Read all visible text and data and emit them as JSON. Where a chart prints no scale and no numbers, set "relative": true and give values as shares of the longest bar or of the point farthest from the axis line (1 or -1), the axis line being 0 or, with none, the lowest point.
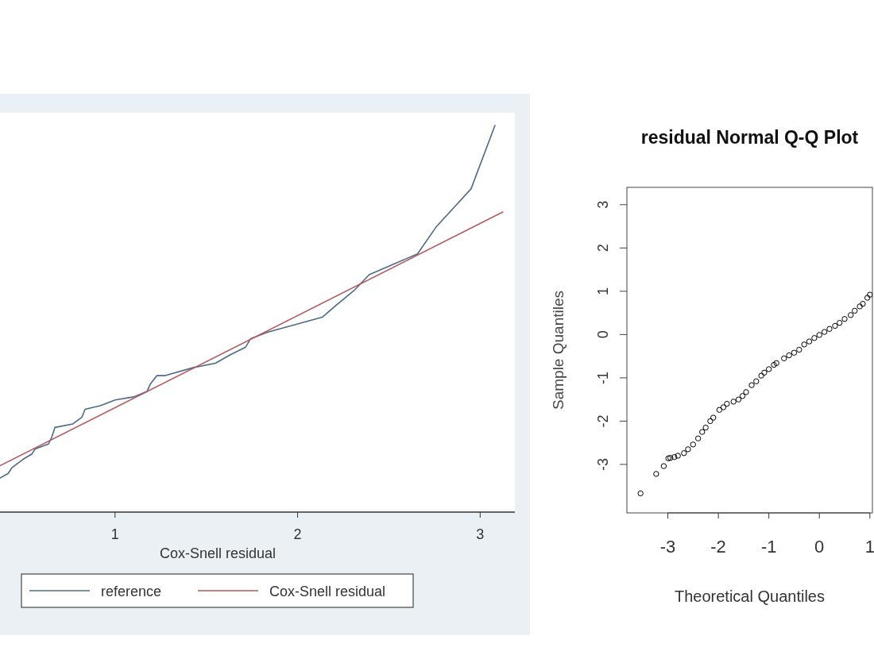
{
  "chart_data": [
    {
      "type": "line",
      "xlabel": "Cox-Snell residual",
      "relative": true,
      "xlim": [
        0.37,
        3.19
      ],
      "xticks": [
        1,
        2,
        3
      ],
      "legend": "bottom",
      "series": [
        {
          "name": "reference",
          "color": "#4b6a8c",
          "x": [
            0.37,
            0.415,
            0.434,
            0.461,
            0.498,
            0.544,
            0.562,
            0.635,
            0.653,
            0.671,
            0.769,
            0.818,
            0.836,
            0.919,
            1.001,
            1.102,
            1.175,
            1.193,
            1.23,
            1.275,
            1.431,
            1.55,
            1.632,
            1.714,
            1.742,
            1.834,
            2.135,
            2.209,
            2.309,
            2.392,
            2.657,
            2.758,
            2.95,
            3.081
          ],
          "values": [
            0.088,
            0.1,
            0.114,
            0.124,
            0.137,
            0.15,
            0.163,
            0.176,
            0.193,
            0.219,
            0.228,
            0.245,
            0.266,
            0.275,
            0.29,
            0.298,
            0.312,
            0.331,
            0.353,
            0.353,
            0.374,
            0.385,
            0.407,
            0.426,
            0.448,
            0.465,
            0.504,
            0.534,
            0.573,
            0.614,
            0.668,
            0.737,
            0.836,
            1
          ]
        },
        {
          "name": "Cox-Snell residual",
          "color": "#b35a5e",
          "x": [
            0.37,
            3.124
          ],
          "values": [
            0.12,
            0.776
          ]
        }
      ]
    },
    {
      "type": "scatter",
      "title": "residual Normal Q-Q Plot",
      "xlabel": "Theoretical Quantiles",
      "ylabel": "Sample Quantiles",
      "xlim": [
        -3.81,
        1.05
      ],
      "ylim": [
        -4.12,
        3.4
      ],
      "xticks": [
        -3,
        -2,
        -1,
        0,
        1
      ],
      "yticks": [
        -3,
        -2,
        -1,
        0,
        1,
        2,
        3
      ],
      "marker": "circle",
      "series": [
        {
          "color": "#000000",
          "x": [
            -3.54,
            -3.23,
            -3.08,
            -2.99,
            -2.95,
            -2.87,
            -2.8,
            -2.68,
            -2.6,
            -2.5,
            -2.4,
            -2.32,
            -2.25,
            -2.16,
            -2.1,
            -1.98,
            -1.9,
            -1.83,
            -1.7,
            -1.6,
            -1.52,
            -1.45,
            -1.34,
            -1.25,
            -1.15,
            -1.09,
            -1.0,
            -0.9,
            -0.85,
            -0.7,
            -0.6,
            -0.5,
            -0.4,
            -0.3,
            -0.2,
            -0.1,
            0,
            0.1,
            0.2,
            0.31,
            0.4,
            0.5,
            0.62,
            0.7,
            0.8,
            0.86,
            0.95,
            1.0
          ],
          "values": [
            -3.67,
            -3.22,
            -3.04,
            -2.86,
            -2.85,
            -2.83,
            -2.8,
            -2.74,
            -2.65,
            -2.54,
            -2.4,
            -2.25,
            -2.15,
            -2.0,
            -1.92,
            -1.74,
            -1.68,
            -1.6,
            -1.55,
            -1.5,
            -1.42,
            -1.33,
            -1.17,
            -1.08,
            -0.95,
            -0.88,
            -0.8,
            -0.7,
            -0.66,
            -0.55,
            -0.48,
            -0.42,
            -0.35,
            -0.23,
            -0.16,
            -0.08,
            -0.01,
            0.06,
            0.13,
            0.2,
            0.27,
            0.36,
            0.45,
            0.55,
            0.65,
            0.71,
            0.85,
            0.92
          ]
        }
      ]
    }
  ]
}
